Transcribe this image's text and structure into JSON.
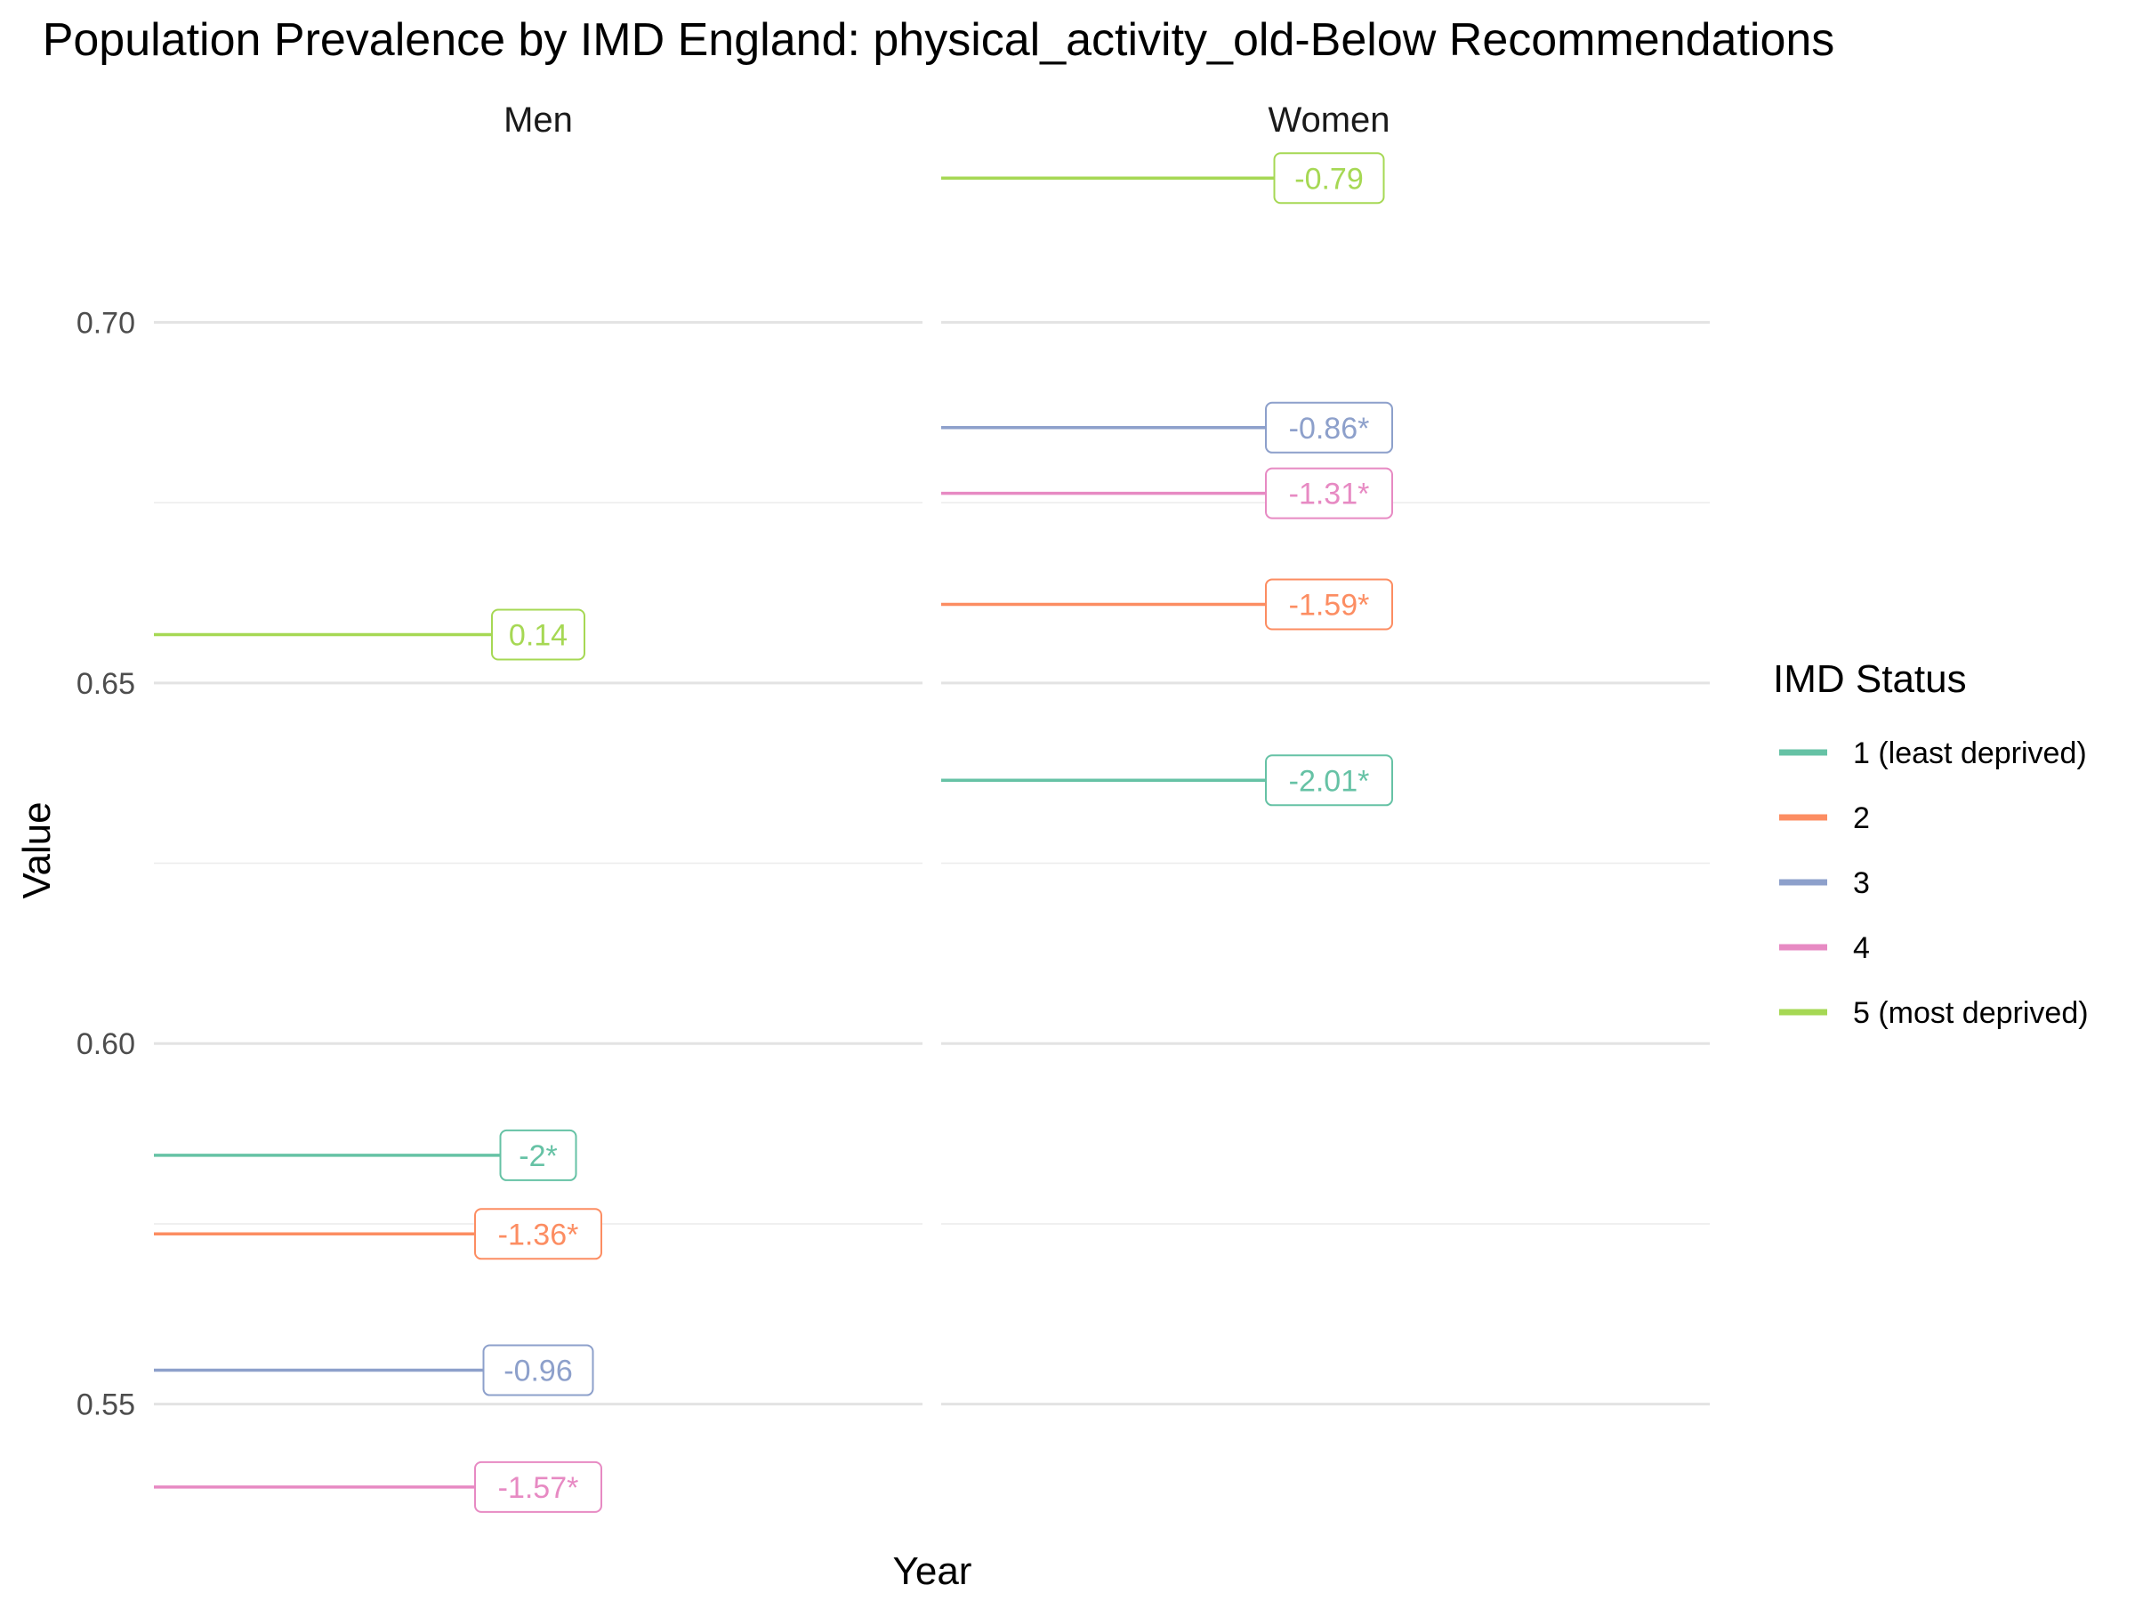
{
  "chart_data": {
    "type": "line",
    "title": "Population Prevalence by IMD England: physical_activity_old-Below Recommendations",
    "xlabel": "Year",
    "ylabel": "Value",
    "ylim": [
      0.5375,
      0.7225
    ],
    "yticks": [
      0.55,
      0.6,
      0.65,
      0.7
    ],
    "ytick_labels": [
      "0.55",
      "0.60",
      "0.65",
      "0.70"
    ],
    "grid": true,
    "legend": {
      "title": "IMD Status",
      "position": "right"
    },
    "facets": [
      "Men",
      "Women"
    ],
    "series": [
      {
        "name": "1 (least deprived)",
        "color": "#66C2A5",
        "values": {
          "Men": 0.5845,
          "Women": 0.6365
        },
        "labels": {
          "Men": "-2*",
          "Women": "-2.01*"
        }
      },
      {
        "name": "2",
        "color": "#FC8D62",
        "values": {
          "Men": 0.5736,
          "Women": 0.6609
        },
        "labels": {
          "Men": "-1.36*",
          "Women": "-1.59*"
        }
      },
      {
        "name": "3",
        "color": "#8DA0CB",
        "values": {
          "Men": 0.5547,
          "Women": 0.6854
        },
        "labels": {
          "Men": "-0.96",
          "Women": "-0.86*"
        }
      },
      {
        "name": "4",
        "color": "#E78AC3",
        "values": {
          "Men": 0.5385,
          "Women": 0.6763
        },
        "labels": {
          "Men": "-1.57*",
          "Women": "-1.31*"
        }
      },
      {
        "name": "5 (most deprived)",
        "color": "#A6D854",
        "values": {
          "Men": 0.6567,
          "Women": 0.72
        },
        "labels": {
          "Men": "0.14",
          "Women": "-0.79"
        }
      }
    ]
  }
}
